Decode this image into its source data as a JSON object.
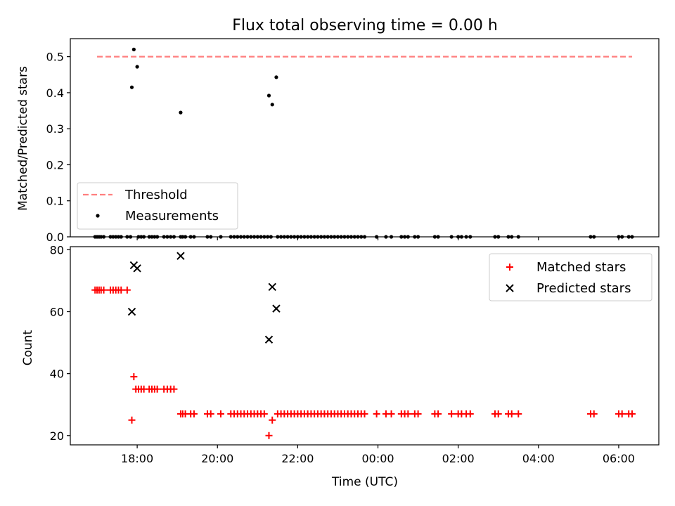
{
  "chart_data": [
    {
      "type": "scatter",
      "title": "Flux total observing time = 0.00 h",
      "xlabel": "",
      "ylabel": "Matched/Predicted stars",
      "ylim": [
        0,
        0.55
      ],
      "yticks": [
        "0.0",
        "0.1",
        "0.2",
        "0.3",
        "0.4",
        "0.5"
      ],
      "yticks_values": [
        0,
        0.1,
        0.2,
        0.3,
        0.4,
        0.5
      ],
      "x_range": [
        "16:20",
        "07:00"
      ],
      "grid": false,
      "legend_position": "lower-left",
      "threshold": {
        "name": "Threshold",
        "y": 0.5,
        "x_start": "17:00",
        "x_end": "06:20",
        "color": "#ff7f7f",
        "style": "dashed"
      },
      "series": [
        {
          "name": "Measurements",
          "color": "#000000",
          "marker": "dot",
          "points": [
            [
              "16:57",
              0
            ],
            [
              "17:00",
              0
            ],
            [
              "17:03",
              0
            ],
            [
              "17:06",
              0
            ],
            [
              "17:10",
              0
            ],
            [
              "17:20",
              0
            ],
            [
              "17:24",
              0
            ],
            [
              "17:28",
              0
            ],
            [
              "17:32",
              0
            ],
            [
              "17:36",
              0
            ],
            [
              "17:45",
              0
            ],
            [
              "17:50",
              0
            ],
            [
              "17:52",
              0.415
            ],
            [
              "17:55",
              0.52
            ],
            [
              "18:00",
              0.472
            ],
            [
              "19:05",
              0.345
            ],
            [
              "18:02",
              0
            ],
            [
              "18:06",
              0
            ],
            [
              "18:10",
              0
            ],
            [
              "18:18",
              0
            ],
            [
              "18:22",
              0
            ],
            [
              "18:26",
              0
            ],
            [
              "18:30",
              0
            ],
            [
              "18:40",
              0
            ],
            [
              "18:45",
              0
            ],
            [
              "18:50",
              0
            ],
            [
              "18:55",
              0
            ],
            [
              "19:05",
              0
            ],
            [
              "19:08",
              0
            ],
            [
              "19:12",
              0
            ],
            [
              "19:20",
              0
            ],
            [
              "19:25",
              0
            ],
            [
              "19:45",
              0
            ],
            [
              "19:50",
              0
            ],
            [
              "20:05",
              0
            ],
            [
              "20:20",
              0
            ],
            [
              "20:25",
              0
            ],
            [
              "20:30",
              0
            ],
            [
              "20:35",
              0
            ],
            [
              "20:40",
              0
            ],
            [
              "20:45",
              0
            ],
            [
              "20:50",
              0
            ],
            [
              "20:55",
              0
            ],
            [
              "21:00",
              0
            ],
            [
              "21:05",
              0
            ],
            [
              "21:10",
              0
            ],
            [
              "21:15",
              0
            ],
            [
              "21:20",
              0
            ],
            [
              "21:17",
              0.392
            ],
            [
              "21:22",
              0.367
            ],
            [
              "21:28",
              0.443
            ],
            [
              "21:30",
              0
            ],
            [
              "21:35",
              0
            ],
            [
              "21:40",
              0
            ],
            [
              "21:45",
              0
            ],
            [
              "21:50",
              0
            ],
            [
              "21:55",
              0
            ],
            [
              "22:00",
              0
            ],
            [
              "22:05",
              0
            ],
            [
              "22:10",
              0
            ],
            [
              "22:15",
              0
            ],
            [
              "22:20",
              0
            ],
            [
              "22:25",
              0
            ],
            [
              "22:30",
              0
            ],
            [
              "22:35",
              0
            ],
            [
              "22:40",
              0
            ],
            [
              "22:45",
              0
            ],
            [
              "22:50",
              0
            ],
            [
              "22:55",
              0
            ],
            [
              "23:00",
              0
            ],
            [
              "23:05",
              0
            ],
            [
              "23:10",
              0
            ],
            [
              "23:15",
              0
            ],
            [
              "23:20",
              0
            ],
            [
              "23:25",
              0
            ],
            [
              "23:30",
              0
            ],
            [
              "23:35",
              0
            ],
            [
              "23:40",
              0
            ],
            [
              "23:58",
              0
            ],
            [
              "00:12",
              0
            ],
            [
              "00:20",
              0
            ],
            [
              "00:35",
              0
            ],
            [
              "00:40",
              0
            ],
            [
              "00:45",
              0
            ],
            [
              "00:55",
              0
            ],
            [
              "01:00",
              0
            ],
            [
              "01:25",
              0
            ],
            [
              "01:30",
              0
            ],
            [
              "01:50",
              0
            ],
            [
              "02:00",
              0
            ],
            [
              "02:05",
              0
            ],
            [
              "02:12",
              0
            ],
            [
              "02:18",
              0
            ],
            [
              "02:55",
              0
            ],
            [
              "03:00",
              0
            ],
            [
              "03:15",
              0
            ],
            [
              "03:20",
              0
            ],
            [
              "03:30",
              0
            ],
            [
              "05:18",
              0
            ],
            [
              "05:23",
              0
            ],
            [
              "06:00",
              0
            ],
            [
              "06:05",
              0
            ],
            [
              "06:15",
              0
            ],
            [
              "06:20",
              0
            ]
          ]
        }
      ]
    },
    {
      "type": "scatter",
      "title": "",
      "xlabel": "Time (UTC)",
      "ylabel": "Count",
      "ylim": [
        17,
        81
      ],
      "yticks": [
        "20",
        "40",
        "60",
        "80"
      ],
      "yticks_values": [
        20,
        40,
        60,
        80
      ],
      "x_range": [
        "16:20",
        "07:00"
      ],
      "xticks": [
        "18:00",
        "20:00",
        "22:00",
        "00:00",
        "02:00",
        "04:00",
        "06:00"
      ],
      "grid": false,
      "legend_position": "upper-right",
      "series": [
        {
          "name": "Matched stars",
          "color": "#ff0000",
          "marker": "plus",
          "points": [
            [
              "16:57",
              67
            ],
            [
              "17:00",
              67
            ],
            [
              "17:03",
              67
            ],
            [
              "17:06",
              67
            ],
            [
              "17:10",
              67
            ],
            [
              "17:20",
              67
            ],
            [
              "17:24",
              67
            ],
            [
              "17:28",
              67
            ],
            [
              "17:32",
              67
            ],
            [
              "17:36",
              67
            ],
            [
              "17:45",
              67
            ],
            [
              "17:52",
              25
            ],
            [
              "17:55",
              39
            ],
            [
              "17:58",
              35
            ],
            [
              "18:02",
              35
            ],
            [
              "18:06",
              35
            ],
            [
              "18:10",
              35
            ],
            [
              "18:18",
              35
            ],
            [
              "18:22",
              35
            ],
            [
              "18:26",
              35
            ],
            [
              "18:30",
              35
            ],
            [
              "18:40",
              35
            ],
            [
              "18:45",
              35
            ],
            [
              "18:50",
              35
            ],
            [
              "18:55",
              35
            ],
            [
              "19:05",
              27
            ],
            [
              "19:08",
              27
            ],
            [
              "19:12",
              27
            ],
            [
              "19:20",
              27
            ],
            [
              "19:25",
              27
            ],
            [
              "19:45",
              27
            ],
            [
              "19:50",
              27
            ],
            [
              "20:05",
              27
            ],
            [
              "20:20",
              27
            ],
            [
              "20:25",
              27
            ],
            [
              "20:30",
              27
            ],
            [
              "20:35",
              27
            ],
            [
              "20:40",
              27
            ],
            [
              "20:45",
              27
            ],
            [
              "20:50",
              27
            ],
            [
              "20:55",
              27
            ],
            [
              "21:00",
              27
            ],
            [
              "21:05",
              27
            ],
            [
              "21:10",
              27
            ],
            [
              "21:17",
              20
            ],
            [
              "21:22",
              25
            ],
            [
              "21:30",
              27
            ],
            [
              "21:35",
              27
            ],
            [
              "21:40",
              27
            ],
            [
              "21:45",
              27
            ],
            [
              "21:50",
              27
            ],
            [
              "21:55",
              27
            ],
            [
              "22:00",
              27
            ],
            [
              "22:05",
              27
            ],
            [
              "22:10",
              27
            ],
            [
              "22:15",
              27
            ],
            [
              "22:20",
              27
            ],
            [
              "22:25",
              27
            ],
            [
              "22:30",
              27
            ],
            [
              "22:35",
              27
            ],
            [
              "22:40",
              27
            ],
            [
              "22:45",
              27
            ],
            [
              "22:50",
              27
            ],
            [
              "22:55",
              27
            ],
            [
              "23:00",
              27
            ],
            [
              "23:05",
              27
            ],
            [
              "23:10",
              27
            ],
            [
              "23:15",
              27
            ],
            [
              "23:20",
              27
            ],
            [
              "23:25",
              27
            ],
            [
              "23:30",
              27
            ],
            [
              "23:35",
              27
            ],
            [
              "23:40",
              27
            ],
            [
              "23:58",
              27
            ],
            [
              "00:12",
              27
            ],
            [
              "00:20",
              27
            ],
            [
              "00:35",
              27
            ],
            [
              "00:40",
              27
            ],
            [
              "00:45",
              27
            ],
            [
              "00:55",
              27
            ],
            [
              "01:00",
              27
            ],
            [
              "01:25",
              27
            ],
            [
              "01:30",
              27
            ],
            [
              "01:50",
              27
            ],
            [
              "02:00",
              27
            ],
            [
              "02:05",
              27
            ],
            [
              "02:12",
              27
            ],
            [
              "02:18",
              27
            ],
            [
              "02:55",
              27
            ],
            [
              "03:00",
              27
            ],
            [
              "03:15",
              27
            ],
            [
              "03:20",
              27
            ],
            [
              "03:30",
              27
            ],
            [
              "05:18",
              27
            ],
            [
              "05:23",
              27
            ],
            [
              "06:00",
              27
            ],
            [
              "06:05",
              27
            ],
            [
              "06:15",
              27
            ],
            [
              "06:20",
              27
            ]
          ]
        },
        {
          "name": "Predicted stars",
          "color": "#000000",
          "marker": "x",
          "points": [
            [
              "17:52",
              60
            ],
            [
              "17:55",
              75
            ],
            [
              "18:00",
              74
            ],
            [
              "19:05",
              78
            ],
            [
              "21:17",
              51
            ],
            [
              "21:22",
              68
            ],
            [
              "21:28",
              61
            ]
          ]
        }
      ]
    }
  ]
}
